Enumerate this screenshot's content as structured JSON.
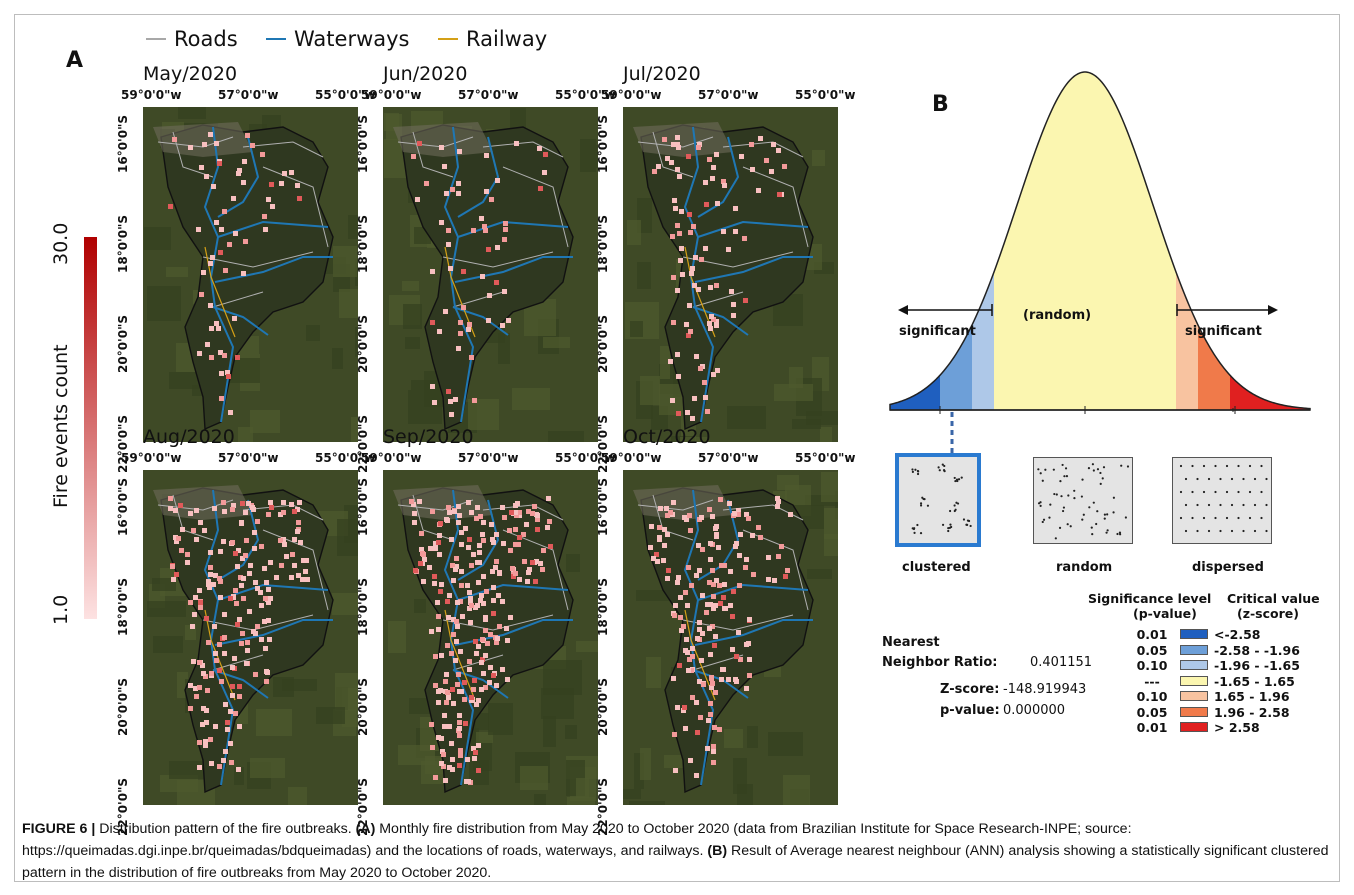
{
  "panel_a": {
    "letter": "A",
    "legend": [
      {
        "label": "Roads",
        "color": "#a8a8a8"
      },
      {
        "label": "Waterways",
        "color": "#1f77b4"
      },
      {
        "label": "Railway",
        "color": "#d4a017"
      }
    ],
    "colorbar": {
      "label": "Fire events count",
      "min": "1.0",
      "max": "30.0",
      "color_low": "#fde2e2",
      "color_high": "#b00000"
    },
    "lon_ticks": [
      "59°0'0\"w",
      "57°0'0\"w",
      "55°0'0\"w"
    ],
    "lat_ticks": [
      "16°0'0\"S",
      "18°0'0\"S",
      "20°0'0\"S",
      "22°0'0\"S"
    ],
    "maps": [
      {
        "title": "May/2020",
        "fire_level": 0.15
      },
      {
        "title": "Jun/2020",
        "fire_level": 0.15
      },
      {
        "title": "Jul/2020",
        "fire_level": 0.3
      },
      {
        "title": "Aug/2020",
        "fire_level": 0.75
      },
      {
        "title": "Sep/2020",
        "fire_level": 1.0
      },
      {
        "title": "Oct/2020",
        "fire_level": 0.65
      }
    ]
  },
  "panel_b": {
    "letter": "B",
    "center_label": "(random)",
    "left_label": "significant",
    "right_label": "significant",
    "patterns": [
      "clustered",
      "random",
      "dispersed"
    ],
    "stats": {
      "nearest_label": "Nearest",
      "ratio_label": "Neighbor Ratio:",
      "ratio_value": "0.401151",
      "z_label": "Z-score:",
      "z_value": "-148.919943",
      "p_label": "p-value:",
      "p_value": "0.000000"
    },
    "significance": {
      "header_p": "Significance level",
      "header_p2": "(p-value)",
      "header_z": "Critical value",
      "header_z2": "(z-score)",
      "rows": [
        {
          "p": "0.01",
          "z": "<-2.58",
          "color": "#1f5fbf"
        },
        {
          "p": "0.05",
          "z": "-2.58 - -1.96",
          "color": "#6d9fd8"
        },
        {
          "p": "0.10",
          "z": "-1.96 - -1.65",
          "color": "#aec8e8"
        },
        {
          "p": "---",
          "z": "-1.65 - 1.65",
          "color": "#fbf6b0"
        },
        {
          "p": "0.10",
          "z": "1.65 - 1.96",
          "color": "#f8c3a0"
        },
        {
          "p": "0.05",
          "z": "1.96 - 2.58",
          "color": "#f07a4a"
        },
        {
          "p": "0.01",
          "z": "> 2.58",
          "color": "#e02020"
        }
      ]
    }
  },
  "caption": {
    "label": "FIGURE 6 |",
    "intro": " Distribution pattern of the fire outbreaks. ",
    "a_label": "(A)",
    "a_text": " Monthly fire distribution from May 2020 to October 2020 (data from Brazilian Institute for Space Research-INPE; source: https://queimadas.dgi.inpe.br/queimadas/bdqueimadas) and the locations of roads, waterways, and railways. ",
    "b_label": "(B)",
    "b_text": " Result of Average nearest neighbour (ANN) analysis showing a statistically significant clustered pattern in the distribution of fire outbreaks from May 2020 to October 2020."
  }
}
